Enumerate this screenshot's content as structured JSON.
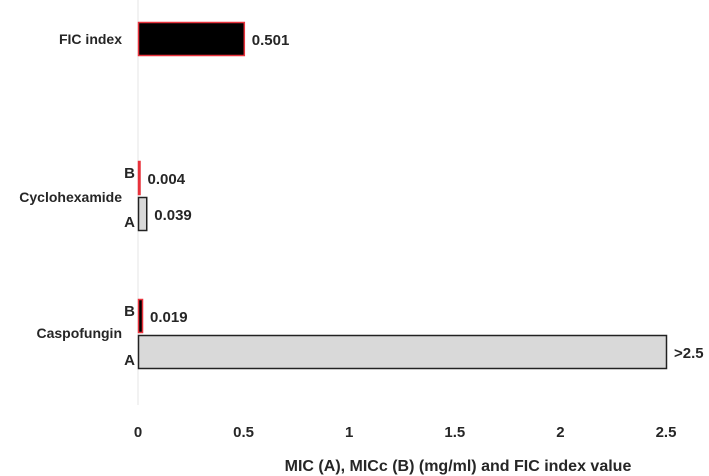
{
  "chart_data": {
    "type": "bar",
    "orientation": "horizontal",
    "title": "",
    "xlabel": "MIC (A), MICc (B) (mg/ml) and FIC index value",
    "ylabel": "",
    "xlim": [
      0,
      2.5
    ],
    "xticks": [
      "0",
      "0.5",
      "1",
      "1.5",
      "2",
      "2.5"
    ],
    "grid": false,
    "legend": "none",
    "groups": [
      {
        "category": "FIC index",
        "bars": [
          {
            "label": "",
            "value": 0.501,
            "value_label": "0.501",
            "fill": "#000000",
            "stroke": "#e8323c"
          }
        ]
      },
      {
        "category": "Cyclohexamide",
        "bars": [
          {
            "label": "B",
            "value": 0.004,
            "value_label": "0.004",
            "fill": "#000000",
            "stroke": "#e8323c"
          },
          {
            "label": "A",
            "value": 0.039,
            "value_label": "0.039",
            "fill": "#d9d9d9",
            "stroke": "#222222"
          }
        ]
      },
      {
        "category": "Caspofungin",
        "bars": [
          {
            "label": "B",
            "value": 0.019,
            "value_label": "0.019",
            "fill": "#000000",
            "stroke": "#e8323c"
          },
          {
            "label": "A",
            "value": 2.5,
            "value_label": ">2.5",
            "fill": "#d9d9d9",
            "stroke": "#222222"
          }
        ]
      }
    ]
  }
}
